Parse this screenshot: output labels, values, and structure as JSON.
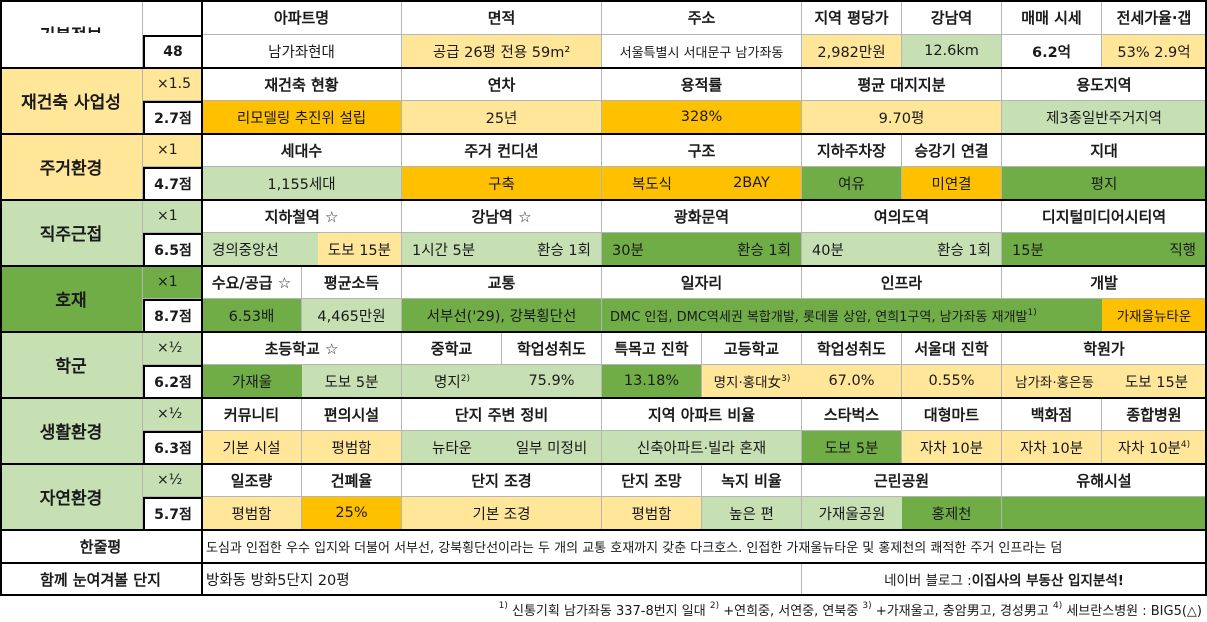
{
  "basic": {
    "category": "기본정보",
    "score": "48",
    "headers": [
      "아파트명",
      "면적",
      "주소",
      "지역 평당가",
      "강남역",
      "매매 시세",
      "전세가율·갭"
    ],
    "values": {
      "name": "남가좌현대",
      "area": "공급 26평   전용 59m²",
      "address": "서울특별시 서대문구 남가좌동",
      "price_per_pyeong": "2,982만원",
      "gangnam": "12.6km",
      "sale_price": "6.2억",
      "jeonse": "53%  2.9억"
    }
  },
  "sections": {
    "rebuild": {
      "category": "재건축 사업성",
      "multiplier": "×1.5",
      "score": "2.7점",
      "headers": [
        "재건축 현황",
        "연차",
        "용적률",
        "평균 대지지분",
        "용도지역"
      ],
      "values": [
        "리모델링 추진위 설립",
        "25년",
        "328%",
        "9.70평",
        "제3종일반주거지역"
      ]
    },
    "living": {
      "category": "주거환경",
      "multiplier": "×1",
      "score": "4.7점",
      "headers": [
        "세대수",
        "주거 컨디션",
        "구조",
        "지하주차장",
        "승강기 연결",
        "지대"
      ],
      "values": [
        "1,155세대",
        "구축",
        "복도식",
        "2BAY",
        "여유",
        "미연결",
        "평지"
      ]
    },
    "commute": {
      "category": "직주근접",
      "multiplier": "×1",
      "score": "6.5점",
      "headers": [
        "지하철역 ☆",
        "강남역 ☆",
        "광화문역",
        "여의도역",
        "디지털미디어시티역"
      ],
      "values": [
        "경의중앙선",
        "도보 15분",
        "1시간 5분",
        "환승 1회",
        "30분",
        "환승 1회",
        "40분",
        "환승 1회",
        "15분",
        "직행"
      ]
    },
    "development": {
      "category": "호재",
      "multiplier": "×1",
      "score": "8.7점",
      "headers": [
        "수요/공급 ☆",
        "평균소득",
        "교통",
        "일자리",
        "인프라",
        "개발"
      ],
      "values": [
        "6.53배",
        "4,465만원",
        "서부선('29), 강북횡단선",
        "DMC 인접, DMC역세권 복합개발, 롯데몰 상암, 연희1구역, 남가좌동 재개발",
        "가재울뉴타운"
      ]
    },
    "school": {
      "category": "학군",
      "multiplier": "×½",
      "score": "6.2점",
      "headers": [
        "초등학교 ☆",
        "중학교",
        "학업성취도",
        "특목고 진학",
        "고등학교",
        "학업성취도",
        "서울대 진학",
        "학원가"
      ],
      "values": [
        "가재울",
        "도보 5분",
        "명지",
        "75.9%",
        "13.18%",
        "명지·홍대女",
        "67.0%",
        "0.55%",
        "남가좌·홍은동",
        "도보 15분"
      ]
    },
    "life": {
      "category": "생활환경",
      "multiplier": "×½",
      "score": "6.3점",
      "headers": [
        "커뮤니티",
        "편의시설",
        "단지 주변 정비",
        "지역 아파트 비율",
        "스타벅스",
        "대형마트",
        "백화점",
        "종합병원"
      ],
      "values": [
        "기본 시설",
        "평범함",
        "뉴타운",
        "일부 미정비",
        "신축아파트·빌라 혼재",
        "도보 5분",
        "자차 10분",
        "자차 10분",
        "자차 10분"
      ]
    },
    "nature": {
      "category": "자연환경",
      "multiplier": "×½",
      "score": "5.7점",
      "headers": [
        "일조량",
        "건폐율",
        "단지 조경",
        "단지 조망",
        "녹지 비율",
        "근린공원",
        "유해시설"
      ],
      "values": [
        "평범함",
        "25%",
        "기본 조경",
        "평범함",
        "높은 편",
        "가재울공원",
        "홍제천"
      ]
    }
  },
  "summary": {
    "label": "한줄평",
    "text": "도심과 인접한 우수 입지와 더불어 서부선, 강북횡단선이라는 두 개의 교통 호재까지 갖춘 다크호스. 인접한 가재울뉴타운 및 홍제천의 쾌적한 주거 인프라는 덤"
  },
  "related": {
    "label": "함께 눈여겨볼 단지",
    "text": "방화동 방화5단지 20평",
    "blog_prefix": "네이버 블로그 : ",
    "blog_name": "이집사의 부동산 입지분석!"
  },
  "footnotes": {
    "n1": "1)",
    "t1": " 신통기획 남가좌동 337-8번지 일대 ",
    "n2": "2)",
    "t2": " +연희중, 서연중, 연북중 ",
    "n3": "3)",
    "t3": " +가재울고, 충암男고, 경성男고 ",
    "n4": "4)",
    "t4": " 세브란스병원 : BIG5(△)"
  },
  "colors": {
    "light_green": "#c6e0b4",
    "dark_green": "#70ad47",
    "light_yellow": "#ffe699",
    "orange": "#ffc000",
    "category_yellow": "#ffe699",
    "category_green": "#c6e0b4"
  }
}
